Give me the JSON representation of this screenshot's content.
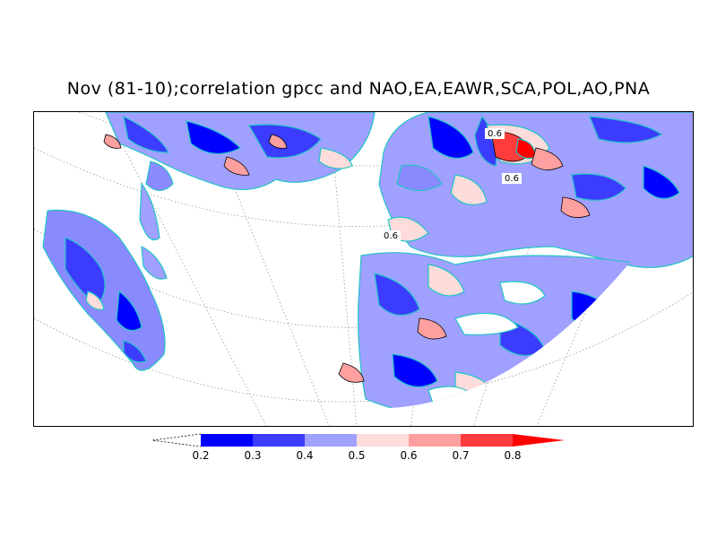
{
  "title": "Nov (81-10);correlation gpcc and NAO,EA,EAWR,SCA,POL,AO,PNA",
  "map": {
    "projection": "polar stereographic (North Atlantic / Eurasia sector)",
    "grid_lines": true,
    "coastline_color": "#22c4c4",
    "contour_labels": [
      "0.6",
      "0.6",
      "0.6"
    ]
  },
  "colorbar": {
    "levels": [
      "0.2",
      "0.3",
      "0.4",
      "0.5",
      "0.6",
      "0.7",
      "0.8"
    ],
    "colors": [
      "#0000ff",
      "#3c3cff",
      "#a0a0ff",
      "#ffdcdc",
      "#ffa0a0",
      "#ff3c3c",
      "#ff0000"
    ],
    "lower_extension": "white (dashed outline)",
    "upper_extension": "#ff0000"
  }
}
